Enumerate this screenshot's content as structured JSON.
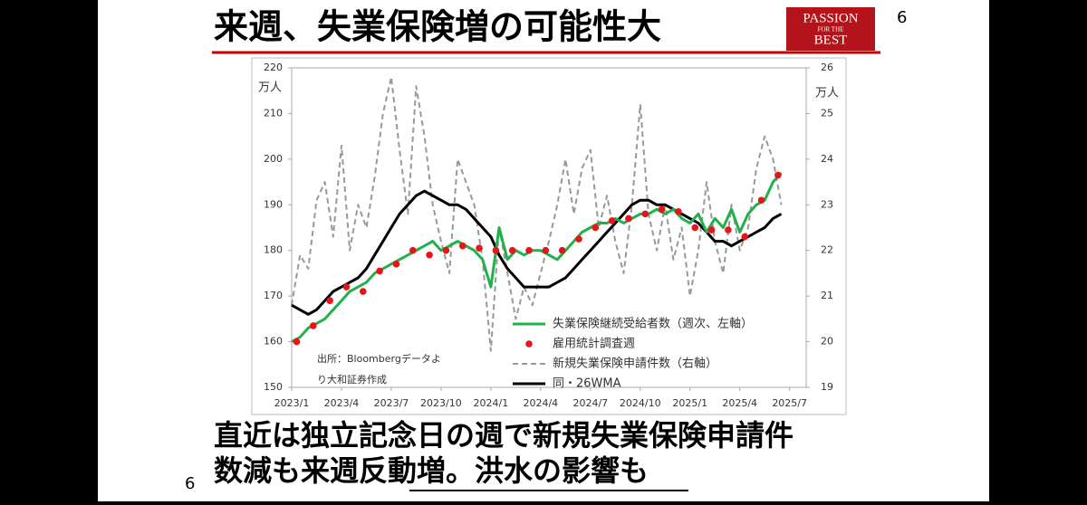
{
  "slide": {
    "title": "来週、失業保険増の可能性大",
    "logo": [
      "PASSION",
      "FOR THE",
      "BEST"
    ],
    "page_number": "6",
    "body": [
      "直近は独立記念日の週で新規失業保険申請件",
      "数減も来週反動増。洪水の影響も"
    ]
  },
  "chart_data": {
    "type": "line",
    "annotations": [
      "出所：Bloombergデータよ",
      "り大和証券作成"
    ],
    "ylabel": "万人",
    "y2label": "万人",
    "xlim": [
      0,
      31
    ],
    "xticks": [
      {
        "value": 0,
        "label": "2023/1"
      },
      {
        "value": 3,
        "label": "2023/4"
      },
      {
        "value": 6,
        "label": "2023/7"
      },
      {
        "value": 9,
        "label": "2023/10"
      },
      {
        "value": 12,
        "label": "2024/1"
      },
      {
        "value": 15,
        "label": "2024/4"
      },
      {
        "value": 18,
        "label": "2024/7"
      },
      {
        "value": 21,
        "label": "2024/10"
      },
      {
        "value": 24,
        "label": "2025/1"
      },
      {
        "value": 27,
        "label": "2025/4"
      },
      {
        "value": 30,
        "label": "2025/7"
      }
    ],
    "ylim": [
      150,
      220
    ],
    "yticks": [
      150,
      160,
      170,
      180,
      190,
      200,
      210,
      220
    ],
    "y2lim": [
      19,
      26
    ],
    "y2ticks": [
      19,
      20,
      21,
      22,
      23,
      24,
      25,
      26
    ],
    "x": [
      0,
      0.5,
      1,
      1.5,
      2,
      2.5,
      3,
      3.5,
      4,
      4.5,
      5,
      5.5,
      6,
      6.5,
      7,
      7.5,
      8,
      8.5,
      9,
      9.5,
      10,
      10.5,
      11,
      11.5,
      12,
      12.5,
      13,
      13.5,
      14,
      14.5,
      15,
      15.5,
      16,
      16.5,
      17,
      17.5,
      18,
      18.5,
      19,
      19.5,
      20,
      20.5,
      21,
      21.5,
      22,
      22.5,
      23,
      23.5,
      24,
      24.5,
      25,
      25.5,
      26,
      26.5,
      27,
      27.5,
      28,
      28.5,
      29,
      29.5
    ],
    "series": [
      {
        "name": "失業保険継続受給者数（週次、左軸）",
        "color": "#22b04b",
        "style": "solid",
        "values": [
          160,
          161,
          163,
          164,
          165,
          167,
          169,
          171,
          172,
          173,
          175,
          176,
          177,
          178,
          179,
          180,
          181,
          182,
          180,
          181,
          182,
          181,
          180,
          178,
          172,
          185,
          178,
          180,
          179,
          180,
          180,
          179,
          178,
          180,
          182,
          184,
          185,
          186,
          186,
          187,
          186,
          187,
          188,
          188,
          189,
          188,
          189,
          187,
          186,
          188,
          184,
          187,
          185,
          189,
          184,
          188,
          190,
          191,
          195,
          197
        ]
      },
      {
        "name": "雇用統計調査週",
        "color": "#e8141a",
        "style": "dots",
        "x": [
          0.3,
          1.3,
          2.3,
          3.3,
          4.3,
          5.3,
          6.3,
          7.3,
          8.3,
          9.3,
          10.3,
          11.3,
          12.3,
          13.3,
          14.3,
          15.3,
          16.3,
          17.3,
          18.3,
          19.3,
          20.3,
          21.3,
          22.3,
          23.3,
          24.3,
          25.3,
          26.3,
          27.3,
          28.3,
          29.3
        ],
        "values": [
          160,
          163.5,
          169,
          172,
          171,
          175.5,
          177,
          180,
          179,
          180,
          181,
          180.5,
          180,
          180,
          180,
          180,
          180,
          182.5,
          185,
          186.5,
          187,
          188,
          189,
          188.5,
          185,
          184.5,
          184.5,
          183,
          191,
          196.5
        ]
      },
      {
        "name": "新規失業保険申請件数（右軸）",
        "color": "#999999",
        "style": "dashed",
        "axis": "y2",
        "values": [
          20.8,
          21.9,
          21.6,
          23.1,
          23.5,
          22.3,
          24.3,
          22.0,
          23.0,
          22.5,
          23.6,
          25.0,
          25.8,
          24.2,
          22.8,
          25.6,
          24.5,
          23.0,
          22.2,
          21.5,
          24.0,
          23.5,
          23.0,
          21.8,
          19.8,
          22.5,
          21.5,
          20.5,
          21.2,
          20.8,
          21.5,
          22.2,
          23.0,
          24.0,
          22.8,
          23.8,
          24.2,
          22.5,
          23.2,
          22.2,
          21.5,
          23.0,
          25.2,
          22.8,
          22.0,
          23.0,
          21.8,
          22.5,
          21.0,
          22.0,
          23.5,
          22.2,
          21.5,
          23.0,
          22.0,
          22.5,
          23.8,
          24.5,
          24.0,
          23.0
        ]
      },
      {
        "name": "同・26WMA",
        "color": "#000000",
        "style": "solid",
        "axis": "y2",
        "values": [
          20.8,
          20.7,
          20.6,
          20.7,
          20.9,
          21.1,
          21.2,
          21.3,
          21.4,
          21.6,
          21.9,
          22.2,
          22.5,
          22.8,
          23.0,
          23.2,
          23.3,
          23.2,
          23.1,
          23.0,
          23.0,
          22.9,
          22.7,
          22.5,
          22.3,
          21.9,
          21.6,
          21.4,
          21.2,
          21.2,
          21.2,
          21.2,
          21.3,
          21.4,
          21.6,
          21.8,
          22.0,
          22.2,
          22.4,
          22.6,
          22.8,
          23.0,
          23.1,
          23.1,
          23.0,
          23.0,
          22.9,
          22.8,
          22.7,
          22.6,
          22.4,
          22.2,
          22.2,
          22.1,
          22.2,
          22.3,
          22.4,
          22.5,
          22.7,
          22.8
        ]
      }
    ]
  }
}
